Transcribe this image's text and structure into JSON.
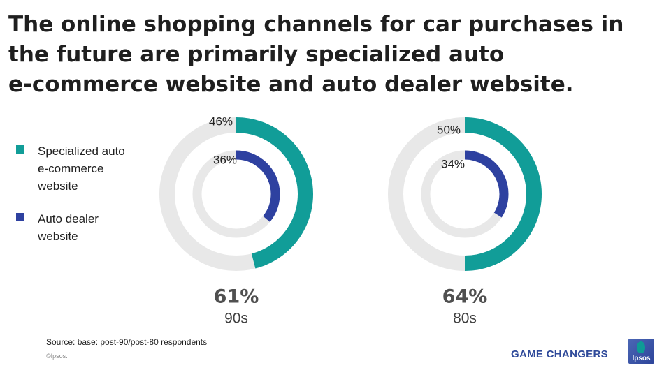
{
  "title": {
    "line1": "The online shopping channels for car purchases in",
    "line2": "the future are primarily specialized auto",
    "line3": "e-commerce website and auto dealer website."
  },
  "legend": {
    "items": [
      {
        "line1": "Specialized auto",
        "line2": "e-commerce",
        "line3": "website",
        "color": "#119d98"
      },
      {
        "line1": "Auto dealer",
        "line2": "website",
        "color": "#2e41a0"
      }
    ]
  },
  "chart_data": [
    {
      "type": "donut",
      "group_label": "90s",
      "total_label": "61%",
      "series": [
        {
          "name": "Specialized auto e-commerce website",
          "value": 46,
          "label": "46%",
          "color": "#119d98"
        },
        {
          "name": "Auto dealer website",
          "value": 36,
          "label": "36%",
          "color": "#2e41a0"
        }
      ]
    },
    {
      "type": "donut",
      "group_label": "80s",
      "total_label": "64%",
      "series": [
        {
          "name": "Specialized auto e-commerce website",
          "value": 50,
          "label": "50%",
          "color": "#119d98"
        },
        {
          "name": "Auto dealer website",
          "value": 34,
          "label": "34%",
          "color": "#2e41a0"
        }
      ]
    }
  ],
  "track_color": "#e8e8e8",
  "footer": {
    "source": "Source: base: post-90/post-80  respondents",
    "copyright": "©Ipsos.",
    "brand": "GAME CHANGERS",
    "logo_text": "Ipsos"
  }
}
